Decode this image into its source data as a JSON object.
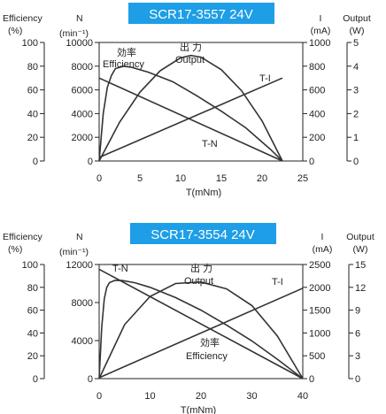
{
  "chart_data": [
    {
      "type": "line",
      "title": "SCR17-3557  24V",
      "title_color": "#1e9ee6",
      "xlabel": "T(mNm)",
      "xlim": [
        0,
        25
      ],
      "x_ticks": [
        0,
        5,
        10,
        15,
        20,
        25
      ],
      "axes": {
        "efficiency": {
          "header": "Efficiency",
          "unit": "(%)",
          "range": [
            0,
            100
          ],
          "ticks": [
            0,
            20,
            40,
            60,
            80,
            100
          ]
        },
        "speed": {
          "header": "N",
          "unit": "(min⁻¹)",
          "range": [
            0,
            10000
          ],
          "ticks": [
            0,
            2000,
            4000,
            6000,
            8000,
            10000
          ]
        },
        "current": {
          "header": "I",
          "unit": "(mA)",
          "range": [
            0,
            1000
          ],
          "ticks": [
            0,
            200,
            400,
            600,
            800,
            1000
          ]
        },
        "output": {
          "header": "Output",
          "unit": "(W)",
          "range": [
            0,
            5
          ],
          "ticks": [
            0,
            1,
            2,
            3,
            4,
            5
          ]
        }
      },
      "series": [
        {
          "name": "T-N",
          "axis": "speed",
          "x": [
            0,
            22.5
          ],
          "y": [
            7000,
            0
          ]
        },
        {
          "name": "T-I",
          "axis": "current",
          "x": [
            0,
            22.5
          ],
          "y": [
            30,
            700
          ]
        },
        {
          "name": "出 力 Output",
          "axis": "output",
          "x": [
            0,
            2.5,
            5,
            7.5,
            10,
            11.25,
            12.5,
            15,
            17.5,
            20,
            22.5
          ],
          "y": [
            0,
            1.63,
            2.9,
            3.81,
            4.35,
            4.45,
            4.38,
            3.85,
            2.96,
            1.69,
            0
          ]
        },
        {
          "name": "効率 Efficiency",
          "axis": "efficiency",
          "x": [
            0,
            0.5,
            1,
            1.5,
            2,
            3,
            4,
            6,
            9,
            12,
            15,
            18,
            21,
            22.5
          ],
          "y": [
            0,
            40,
            62,
            72,
            78,
            80,
            79,
            75,
            67,
            55,
            42,
            28,
            10,
            0
          ]
        }
      ],
      "labels": {
        "efficiency": [
          "効率",
          "Efficiency"
        ],
        "output": [
          "出 力",
          "Output"
        ],
        "ti": "T-I",
        "tn": "T-N"
      }
    },
    {
      "type": "line",
      "title": "SCR17-3554  24V",
      "title_color": "#1e9ee6",
      "xlabel": "T(mNm)",
      "xlim": [
        0,
        40
      ],
      "x_ticks": [
        0,
        10,
        20,
        30,
        40
      ],
      "axes": {
        "efficiency": {
          "header": "Efficiency",
          "unit": "(%)",
          "range": [
            0,
            100
          ],
          "ticks": [
            0,
            20,
            40,
            60,
            80,
            100
          ]
        },
        "speed": {
          "header": "N",
          "unit": "(min⁻¹)",
          "range": [
            0,
            12000
          ],
          "ticks": [
            0,
            4000,
            8000,
            12000
          ]
        },
        "current": {
          "header": "I",
          "unit": "(mA)",
          "range": [
            0,
            2500
          ],
          "ticks": [
            0,
            500,
            1000,
            1500,
            2000,
            2500
          ]
        },
        "output": {
          "header": "Output",
          "unit": "(W)",
          "range": [
            0,
            15
          ],
          "ticks": [
            0,
            3,
            6,
            9,
            12,
            15
          ]
        }
      },
      "series": [
        {
          "name": "T-N",
          "axis": "speed",
          "x": [
            0,
            40
          ],
          "y": [
            11500,
            0
          ]
        },
        {
          "name": "T-I",
          "axis": "current",
          "x": [
            0,
            40
          ],
          "y": [
            20,
            1980
          ]
        },
        {
          "name": "出 力 Output",
          "axis": "output",
          "x": [
            0,
            5,
            10,
            15,
            20,
            25,
            30,
            35,
            40
          ],
          "y": [
            0,
            7.1,
            10.8,
            12.5,
            12.7,
            11.8,
            9.6,
            5.6,
            0
          ]
        },
        {
          "name": "効率 Efficiency",
          "axis": "efficiency",
          "x": [
            0,
            0.5,
            1,
            1.5,
            2,
            3,
            4.5,
            7,
            10,
            15,
            20,
            25,
            30,
            35,
            40
          ],
          "y": [
            0,
            45,
            70,
            80,
            84,
            86,
            86,
            84,
            80,
            71,
            60,
            47,
            33,
            17,
            0
          ]
        }
      ],
      "labels": {
        "efficiency": [
          "効率",
          "Efficiency"
        ],
        "output": [
          "出 力",
          "Output"
        ],
        "ti": "T-I",
        "tn": "T-N"
      }
    }
  ]
}
